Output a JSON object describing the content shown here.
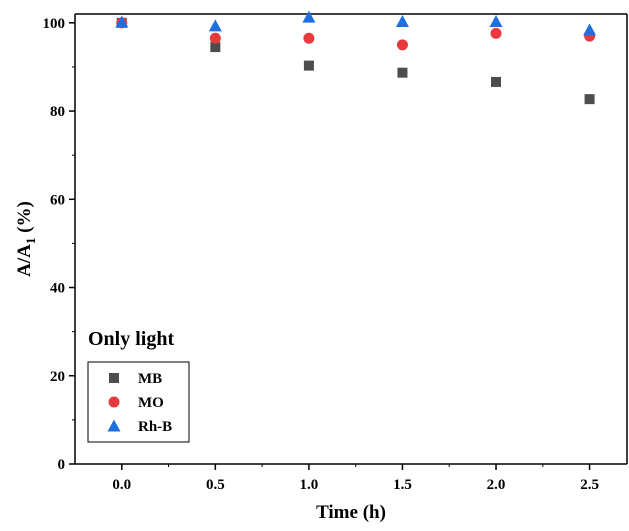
{
  "chart_data": {
    "type": "scatter",
    "annotation": "Only light",
    "xlabel": "Time (h)",
    "ylabel": {
      "main": "A/A",
      "sub": "1",
      "suffix": " (%)"
    },
    "xlim": [
      -0.25,
      2.7
    ],
    "ylim": [
      0,
      102
    ],
    "x_ticks": [
      "0.0",
      "0.5",
      "1.0",
      "1.5",
      "2.0",
      "2.5"
    ],
    "y_ticks": [
      "0",
      "20",
      "40",
      "60",
      "80",
      "100"
    ],
    "grid": false,
    "legend_position": "bottom-left",
    "x": [
      0.0,
      0.5,
      1.0,
      1.5,
      2.0,
      2.5
    ],
    "series": [
      {
        "name": "MB",
        "marker": "square",
        "color": "#4d4d4d",
        "values": [
          100.0,
          94.5,
          90.3,
          88.7,
          86.6,
          82.7
        ]
      },
      {
        "name": "MO",
        "marker": "circle",
        "color": "#e8393c",
        "values": [
          100.0,
          96.5,
          96.5,
          95.0,
          97.6,
          97.0
        ]
      },
      {
        "name": "Rh-B",
        "marker": "triangle",
        "color": "#1f6fe0",
        "values": [
          100.2,
          99.3,
          101.3,
          100.3,
          100.3,
          98.4
        ]
      }
    ]
  }
}
